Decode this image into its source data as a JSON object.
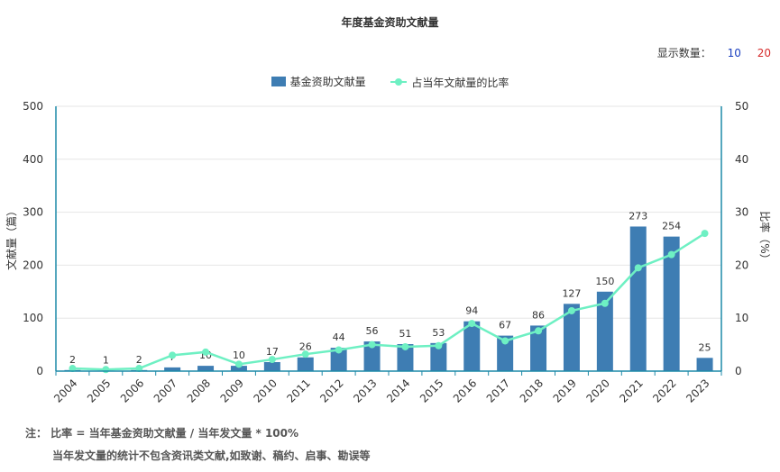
{
  "chart_data": {
    "type": "bar+line",
    "title": "年度基金资助文献量",
    "categories": [
      "2004",
      "2005",
      "2006",
      "2007",
      "2008",
      "2009",
      "2010",
      "2011",
      "2012",
      "2013",
      "2014",
      "2015",
      "2016",
      "2017",
      "2018",
      "2019",
      "2020",
      "2021",
      "2022",
      "2023"
    ],
    "series": [
      {
        "name": "基金资助文献量",
        "type": "bar",
        "axis": "left",
        "color": "#3e7db3",
        "values": [
          2,
          1,
          2,
          7,
          10,
          10,
          17,
          26,
          44,
          56,
          51,
          53,
          94,
          67,
          86,
          127,
          150,
          273,
          254,
          25
        ],
        "labels": [
          "2",
          "1",
          "2",
          "7",
          "10",
          "10",
          "17",
          "26",
          "44",
          "56",
          "51",
          "53",
          "94",
          "67",
          "86",
          "127",
          "150",
          "273",
          "254",
          "25"
        ]
      },
      {
        "name": "占当年文献量的比率",
        "type": "line",
        "axis": "right",
        "color": "#6ef0c3",
        "values": [
          0.5,
          0.3,
          0.5,
          3.0,
          3.6,
          1.3,
          2.2,
          3.2,
          4.0,
          5.0,
          4.6,
          4.8,
          9.0,
          5.7,
          7.6,
          11.4,
          12.8,
          19.5,
          22.0,
          26.0
        ]
      }
    ],
    "ylabel_left": "文献量（篇）",
    "ylabel_right": "比率（%）",
    "ylim_left": [
      0,
      500
    ],
    "ylim_right": [
      0,
      50
    ],
    "yticks_left": [
      "0",
      "100",
      "200",
      "300",
      "400",
      "500"
    ],
    "yticks_right": [
      "0",
      "10",
      "20",
      "30",
      "40",
      "50"
    ],
    "grid": true,
    "legend_position": "top-center"
  },
  "count_selector": {
    "label": "显示数量：",
    "opt10": "10",
    "opt20": "20"
  },
  "notes": {
    "line1": "注： 比率 = 当年基金资助文献量 / 当年发文量 * 100%",
    "line2": "当年发文量的统计不包含资讯类文献,如致谢、稿约、启事、勘误等"
  },
  "colors": {
    "axis": "#1d8aa8",
    "grid": "#e6e6e6",
    "bar": "#3e7db3",
    "line": "#6ef0c3"
  }
}
